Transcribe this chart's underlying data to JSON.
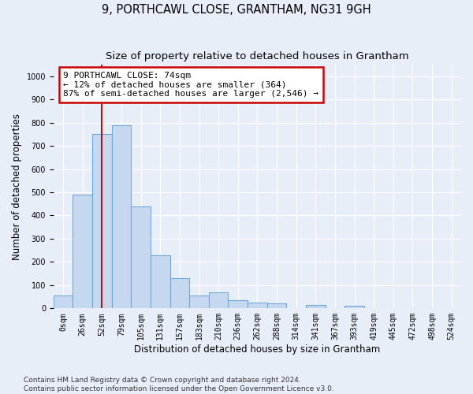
{
  "title": "9, PORTHCAWL CLOSE, GRANTHAM, NG31 9GH",
  "subtitle": "Size of property relative to detached houses in Grantham",
  "xlabel": "Distribution of detached houses by size in Grantham",
  "ylabel": "Number of detached properties",
  "categories": [
    "0sqm",
    "26sqm",
    "52sqm",
    "79sqm",
    "105sqm",
    "131sqm",
    "157sqm",
    "183sqm",
    "210sqm",
    "236sqm",
    "262sqm",
    "288sqm",
    "314sqm",
    "341sqm",
    "367sqm",
    "393sqm",
    "419sqm",
    "445sqm",
    "472sqm",
    "498sqm",
    "524sqm"
  ],
  "values": [
    55,
    490,
    750,
    790,
    440,
    230,
    130,
    55,
    70,
    35,
    25,
    20,
    0,
    15,
    0,
    10,
    0,
    0,
    0,
    0,
    0
  ],
  "bar_color": "#c5d8f0",
  "bar_edge_color": "#6fa8d4",
  "property_line_x": 2,
  "annotation_text": "9 PORTHCAWL CLOSE: 74sqm\n← 12% of detached houses are smaller (364)\n87% of semi-detached houses are larger (2,546) →",
  "annotation_box_color": "#ffffff",
  "annotation_box_edge_color": "#cc0000",
  "vline_color": "#cc0000",
  "footer_line1": "Contains HM Land Registry data © Crown copyright and database right 2024.",
  "footer_line2": "Contains public sector information licensed under the Open Government Licence v3.0.",
  "ylim": [
    0,
    1050
  ],
  "xlim_max": 21,
  "background_color": "#e8eef8",
  "plot_bg_color": "#e8eef8",
  "grid_color": "#ffffff",
  "title_fontsize": 10.5,
  "subtitle_fontsize": 9.5,
  "axis_label_fontsize": 8.5,
  "tick_fontsize": 7,
  "footer_fontsize": 6.5,
  "annotation_fontsize": 8
}
